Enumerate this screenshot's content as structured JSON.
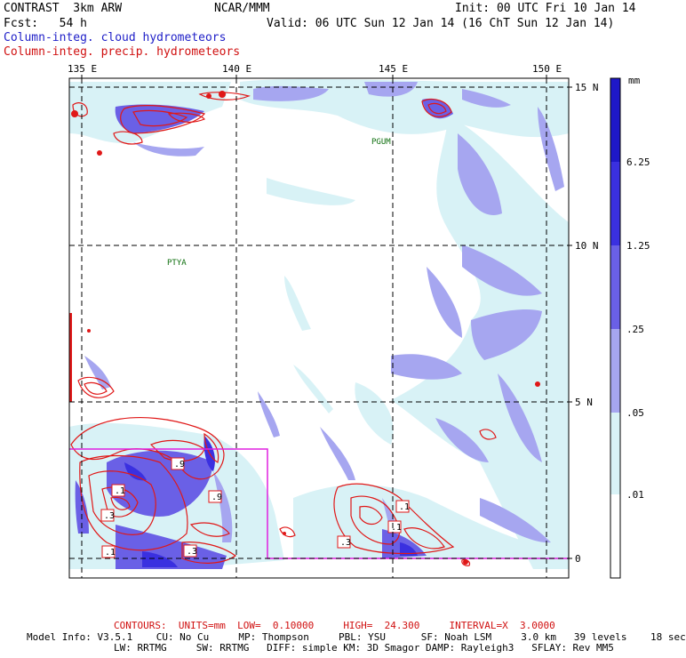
{
  "header": {
    "model": "CONTRAST  3km ARW",
    "center": "NCAR/MMM",
    "init": "Init: 00 UTC Fri 10 Jan 14",
    "fcst": "Fcst:   54 h",
    "valid": "Valid: 06 UTC Sun 12 Jan 14 (16 ChT Sun 12 Jan 14)",
    "field_cloud": "Column-integ. cloud hydrometeors",
    "field_precip": "Column-integ. precip. hydrometeors"
  },
  "map": {
    "lon_labels": [
      "135 E",
      "140 E",
      "145 E",
      "150 E"
    ],
    "lat_labels": [
      "15 N",
      "10 N",
      "5 N",
      "0"
    ],
    "place_labels": [
      "PGUM",
      "PTYA"
    ],
    "contour_labels": [
      ".9",
      ".1",
      ".3",
      ".1",
      ".3",
      ".1",
      ".3",
      ".1",
      ".9"
    ]
  },
  "legend": {
    "unit": "mm",
    "ticks": [
      "6.25",
      "1.25",
      ".25",
      ".05",
      ".01"
    ],
    "colors": [
      "#1e18c8",
      "#3a30e0",
      "#6a60e6",
      "#a6a6f0",
      "#d8f2f6",
      "#ffffff"
    ]
  },
  "footer": {
    "contours_prefix": "CONTOURS:",
    "units": "UNITS=mm",
    "low": "LOW=  0.10000",
    "high": "HIGH=  24.300",
    "interval": "INTERVAL=X  3.0000",
    "model_info_1": "Model Info: V3.5.1    CU: No Cu     MP: Thompson     PBL: YSU      SF: Noah LSM     3.0 km   39 levels    18 sec",
    "model_info_2": "LW: RRTMG     SW: RRTMG   DIFF: simple KM: 3D Smagor DAMP: Rayleigh3   SFLAY: Rev MM5"
  },
  "colors": {
    "cloud_text": "#2020c8",
    "precip_text": "#d01010",
    "domain_box": "#e020e0",
    "place_label": "#107010"
  }
}
